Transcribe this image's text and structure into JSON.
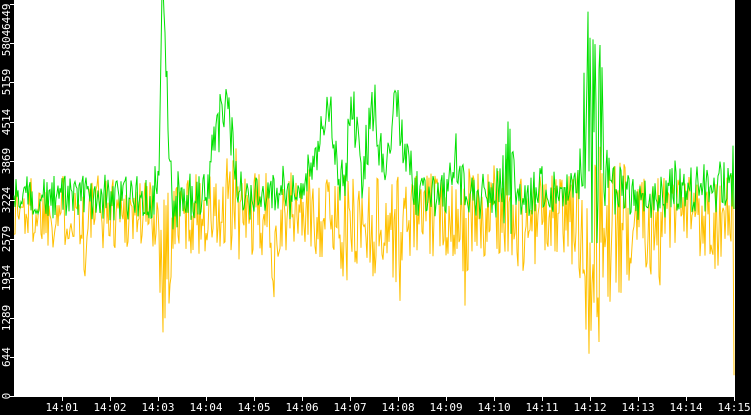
{
  "chart_data": {
    "type": "line",
    "title": "",
    "xlabel": "",
    "ylabel": "",
    "grid": false,
    "legend": "none",
    "panel_bg": "#000000",
    "plot_bg": "#ffffff",
    "tick_color": "#ffffff",
    "tick_label_color": "#ffffff",
    "ylim": [
      0,
      6449
    ],
    "y_ticks": [
      0,
      644,
      1289,
      1934,
      2579,
      3224,
      3869,
      4514,
      5159,
      5804,
      6449
    ],
    "xlim_minutes": [
      0,
      15.02
    ],
    "x_ticks": [
      {
        "minute": 1,
        "label": "14:01"
      },
      {
        "minute": 2,
        "label": "14:02"
      },
      {
        "minute": 3,
        "label": "14:03"
      },
      {
        "minute": 4,
        "label": "14:04"
      },
      {
        "minute": 5,
        "label": "14:05"
      },
      {
        "minute": 6,
        "label": "14:06"
      },
      {
        "minute": 7,
        "label": "14:07"
      },
      {
        "minute": 8,
        "label": "14:08"
      },
      {
        "minute": 9,
        "label": "14:09"
      },
      {
        "minute": 10,
        "label": "14:10"
      },
      {
        "minute": 11,
        "label": "14:11"
      },
      {
        "minute": 12,
        "label": "14:12"
      },
      {
        "minute": 13,
        "label": "14:13"
      },
      {
        "minute": 14,
        "label": "14:14"
      },
      {
        "minute": 15,
        "label": "14:15"
      }
    ],
    "series": [
      {
        "name": "orange",
        "color": "#ffc000",
        "seed": 1337,
        "noise_bias": 0.62,
        "keypoints": [
          [
            0.0,
            3200,
            620
          ],
          [
            1.4,
            3200,
            620
          ],
          [
            1.5,
            2500,
            1100
          ],
          [
            1.6,
            3200,
            620
          ],
          [
            2.95,
            3150,
            650
          ],
          [
            3.1,
            2700,
            1400
          ],
          [
            3.25,
            2800,
            1200
          ],
          [
            3.4,
            3150,
            650
          ],
          [
            4.2,
            3150,
            700
          ],
          [
            4.35,
            3000,
            1000
          ],
          [
            4.6,
            3400,
            1200
          ],
          [
            4.75,
            3150,
            650
          ],
          [
            5.3,
            3100,
            800
          ],
          [
            5.45,
            2800,
            1100
          ],
          [
            5.6,
            3150,
            650
          ],
          [
            6.0,
            3200,
            700
          ],
          [
            6.8,
            3100,
            800
          ],
          [
            6.95,
            2850,
            1000
          ],
          [
            7.1,
            3100,
            800
          ],
          [
            7.55,
            3000,
            900
          ],
          [
            7.9,
            3050,
            900
          ],
          [
            8.05,
            2800,
            1200
          ],
          [
            8.2,
            3150,
            700
          ],
          [
            9.3,
            3150,
            700
          ],
          [
            9.45,
            2700,
            1500
          ],
          [
            9.6,
            3150,
            700
          ],
          [
            10.05,
            3200,
            800
          ],
          [
            10.2,
            3500,
            1100
          ],
          [
            10.35,
            3150,
            700
          ],
          [
            10.45,
            3000,
            950
          ],
          [
            10.9,
            3100,
            800
          ],
          [
            11.55,
            3150,
            650
          ],
          [
            11.85,
            3000,
            1200
          ],
          [
            12.0,
            2900,
            1900
          ],
          [
            12.15,
            2850,
            1900
          ],
          [
            12.3,
            3000,
            1500
          ],
          [
            12.5,
            3100,
            1100
          ],
          [
            12.7,
            2900,
            1300
          ],
          [
            12.9,
            3150,
            700
          ],
          [
            13.1,
            3450,
            1000
          ],
          [
            13.25,
            3100,
            900
          ],
          [
            13.45,
            2950,
            1000
          ],
          [
            13.65,
            3150,
            700
          ],
          [
            13.75,
            3000,
            950
          ],
          [
            13.9,
            3150,
            700
          ],
          [
            14.4,
            3150,
            700
          ],
          [
            14.55,
            3050,
            900
          ],
          [
            14.8,
            3150,
            650
          ],
          [
            14.99,
            3200,
            650
          ],
          [
            15.0,
            300,
            250
          ],
          [
            15.02,
            40,
            30
          ]
        ]
      },
      {
        "name": "green",
        "color": "#00e000",
        "seed": 4242,
        "noise_bias": 0.55,
        "keypoints": [
          [
            0.0,
            3300,
            350
          ],
          [
            1.0,
            3300,
            360
          ],
          [
            2.0,
            3300,
            380
          ],
          [
            2.9,
            3300,
            380
          ],
          [
            3.02,
            3900,
            500
          ],
          [
            3.08,
            6800,
            400
          ],
          [
            3.14,
            6500,
            400
          ],
          [
            3.22,
            4100,
            600
          ],
          [
            3.32,
            3300,
            700
          ],
          [
            3.45,
            3300,
            400
          ],
          [
            4.05,
            3350,
            380
          ],
          [
            4.2,
            4400,
            650
          ],
          [
            4.35,
            4900,
            600
          ],
          [
            4.5,
            4500,
            700
          ],
          [
            4.65,
            3700,
            500
          ],
          [
            4.8,
            3300,
            380
          ],
          [
            5.45,
            3300,
            380
          ],
          [
            5.6,
            3550,
            420
          ],
          [
            5.75,
            3300,
            380
          ],
          [
            6.0,
            3450,
            380
          ],
          [
            6.2,
            3900,
            450
          ],
          [
            6.35,
            4300,
            450
          ],
          [
            6.55,
            4900,
            420
          ],
          [
            6.7,
            4200,
            450
          ],
          [
            6.85,
            3400,
            500
          ],
          [
            7.05,
            4880,
            430
          ],
          [
            7.25,
            3700,
            500
          ],
          [
            7.5,
            4900,
            430
          ],
          [
            7.7,
            3600,
            500
          ],
          [
            7.97,
            4900,
            430
          ],
          [
            8.1,
            4300,
            500
          ],
          [
            8.25,
            3700,
            450
          ],
          [
            8.4,
            3350,
            380
          ],
          [
            9.05,
            3350,
            380
          ],
          [
            9.2,
            4000,
            620
          ],
          [
            9.35,
            3500,
            420
          ],
          [
            9.6,
            3300,
            380
          ],
          [
            10.15,
            3400,
            420
          ],
          [
            10.3,
            3700,
            1100
          ],
          [
            10.45,
            3400,
            420
          ],
          [
            10.9,
            3350,
            380
          ],
          [
            11.05,
            3550,
            420
          ],
          [
            11.2,
            3350,
            380
          ],
          [
            11.7,
            3400,
            380
          ],
          [
            11.8,
            4300,
            1000
          ],
          [
            11.9,
            5200,
            1700
          ],
          [
            11.95,
            4800,
            2000
          ],
          [
            12.05,
            4700,
            2200
          ],
          [
            12.15,
            4400,
            2000
          ],
          [
            12.25,
            4200,
            1500
          ],
          [
            12.35,
            3800,
            900
          ],
          [
            12.55,
            3400,
            450
          ],
          [
            13.0,
            3300,
            380
          ],
          [
            13.6,
            3300,
            380
          ],
          [
            13.75,
            3550,
            420
          ],
          [
            13.95,
            3350,
            380
          ],
          [
            14.3,
            3500,
            400
          ],
          [
            14.55,
            3400,
            380
          ],
          [
            14.7,
            3600,
            500
          ],
          [
            14.85,
            3450,
            400
          ],
          [
            15.02,
            3700,
            600
          ]
        ]
      }
    ]
  }
}
